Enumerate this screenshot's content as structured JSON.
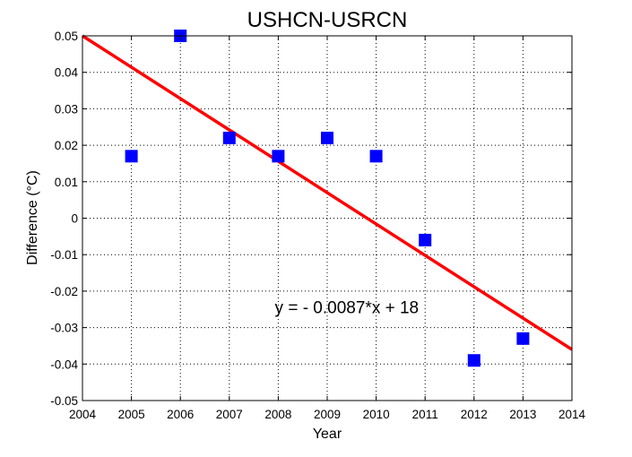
{
  "chart_data": {
    "type": "scatter",
    "title": "USHCN-USRCN",
    "xlabel": "Year",
    "ylabel": "Difference (°C)",
    "xlim": [
      2004,
      2014
    ],
    "ylim": [
      -0.05,
      0.05
    ],
    "x_ticks": [
      2004,
      2005,
      2006,
      2007,
      2008,
      2009,
      2010,
      2011,
      2012,
      2013,
      2014
    ],
    "y_ticks": [
      -0.05,
      -0.04,
      -0.03,
      -0.02,
      -0.01,
      0,
      0.01,
      0.02,
      0.03,
      0.04,
      0.05
    ],
    "y_tick_labels": [
      "-0.05",
      "-0.04",
      "-0.03",
      "-0.02",
      "-0.01",
      "0",
      "0.01",
      "0.02",
      "0.03",
      "0.04",
      "0.05"
    ],
    "grid": true,
    "series": [
      {
        "type": "scatter",
        "marker": "square",
        "color": "#0000ff",
        "points": [
          {
            "x": 2005,
            "y": 0.017
          },
          {
            "x": 2006,
            "y": 0.05
          },
          {
            "x": 2007,
            "y": 0.022
          },
          {
            "x": 2008,
            "y": 0.017
          },
          {
            "x": 2009,
            "y": 0.022
          },
          {
            "x": 2010,
            "y": 0.017
          },
          {
            "x": 2011,
            "y": -0.006
          },
          {
            "x": 2012,
            "y": -0.039
          },
          {
            "x": 2013,
            "y": -0.033
          }
        ]
      },
      {
        "type": "line",
        "color": "#ff0000",
        "points": [
          {
            "x": 2004,
            "y": 0.05
          },
          {
            "x": 2014,
            "y": -0.036
          }
        ]
      }
    ],
    "annotations": [
      {
        "text": "y = - 0.0087*x + 18",
        "x": 2009.4,
        "y": -0.026
      }
    ]
  }
}
